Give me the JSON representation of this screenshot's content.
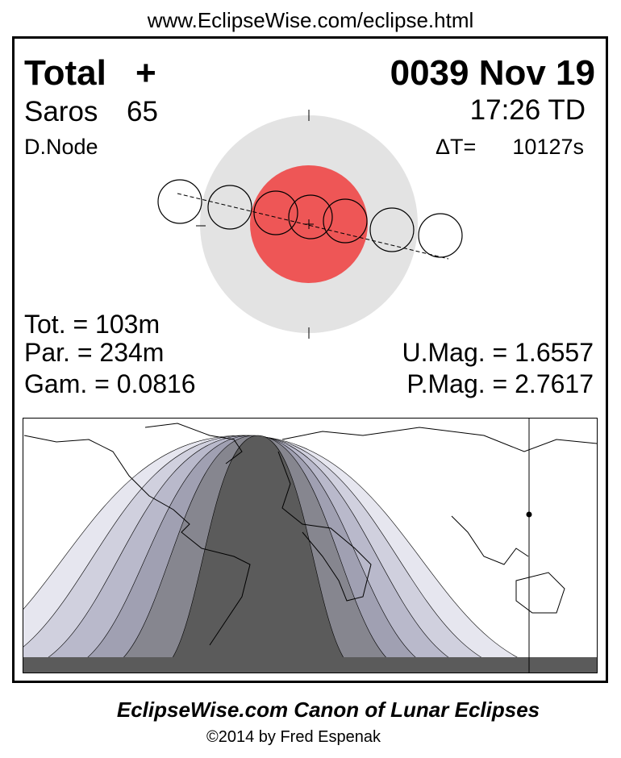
{
  "header": {
    "url": "www.EclipseWise.com/eclipse.html"
  },
  "panel": {
    "eclipse_type": "Total",
    "type_symbol": "+",
    "date": "0039 Nov 19",
    "saros_label": "Saros",
    "saros": "65",
    "time": "17:26 TD",
    "node": "D.Node",
    "delta_t_label": "ΔT=",
    "delta_t": "10127s",
    "totality": "Tot. = 103m",
    "partial": "Par. = 234m",
    "gamma": "Gam. = 0.0816",
    "umbral_mag": "U.Mag. = 1.6557",
    "penumbral_mag": "P.Mag. = 2.7617"
  },
  "footer": {
    "title": "EclipseWise.com Canon of Lunar Eclipses",
    "credit": "©2014 by Fred Espenak"
  }
}
